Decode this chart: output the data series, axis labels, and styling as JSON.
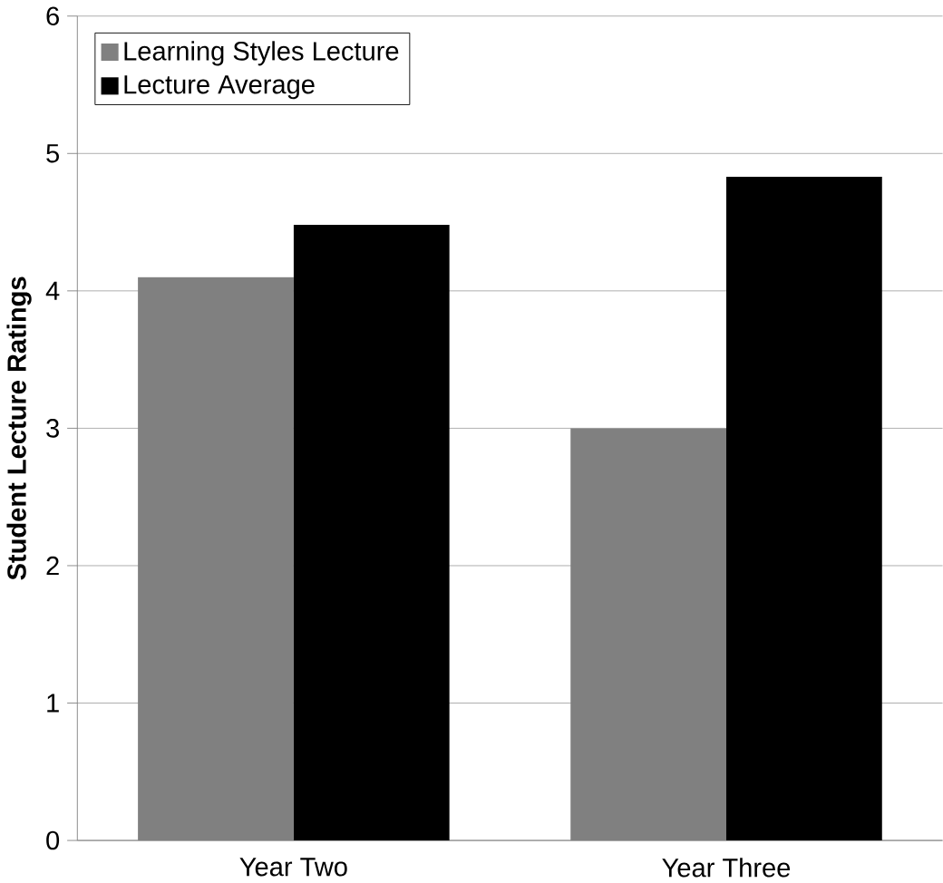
{
  "chart_data": {
    "type": "bar",
    "ylabel": "Student Lecture Ratings",
    "categories": [
      "Year Two",
      "Year Three"
    ],
    "series": [
      {
        "name": "Learning Styles Lecture",
        "color": "#808080",
        "values": [
          4.1,
          3.0
        ]
      },
      {
        "name": "Lecture Average",
        "color": "#000000",
        "values": [
          4.48,
          4.83
        ]
      }
    ],
    "ylim": [
      0,
      6
    ],
    "yticks": [
      0,
      1,
      2,
      3,
      4,
      5,
      6
    ],
    "grid": "y",
    "legend": "top left"
  }
}
